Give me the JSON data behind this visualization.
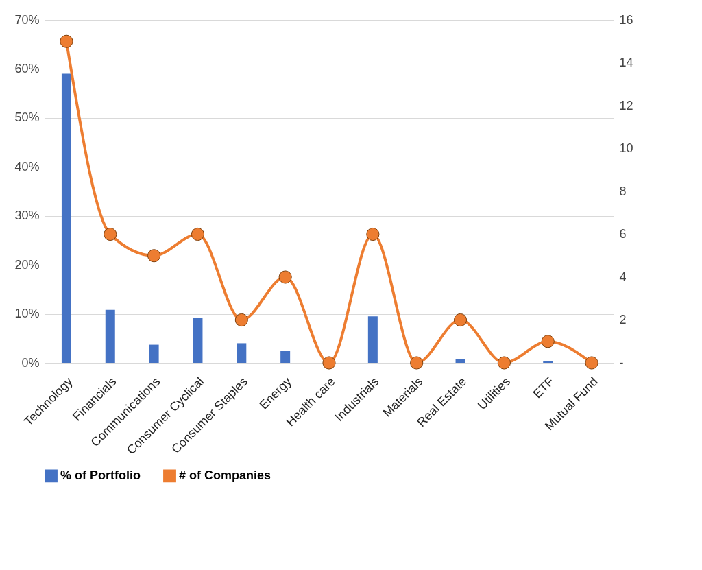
{
  "chart_data": {
    "type": "bar",
    "categories": [
      "Technology",
      "Financials",
      "Communications",
      "Consumer Cyclical",
      "Consumer Staples",
      "Energy",
      "Health care",
      "Industrials",
      "Materials",
      "Real Estate",
      "Utilities",
      "ETF",
      "Mutual Fund"
    ],
    "series": [
      {
        "name": "% of Portfolio",
        "color": "#4472c4",
        "values": [
          59,
          10.8,
          3.7,
          9.2,
          4,
          2.5,
          0,
          9.5,
          0,
          0.8,
          0,
          0.3,
          0
        ]
      },
      {
        "name": "# of Companies",
        "type": "line",
        "axis": "y2",
        "color": "#ed7d31",
        "values": [
          15,
          6,
          5,
          6,
          2,
          4,
          0,
          6,
          0,
          2,
          0,
          1,
          0
        ]
      }
    ],
    "ylim": [
      0,
      70
    ],
    "yticks": [
      {
        "value": 0,
        "label": "0%"
      },
      {
        "value": 10,
        "label": "10%"
      },
      {
        "value": 20,
        "label": "20%"
      },
      {
        "value": 30,
        "label": "30%"
      },
      {
        "value": 40,
        "label": "40%"
      },
      {
        "value": 50,
        "label": "50%"
      },
      {
        "value": 60,
        "label": "60%"
      },
      {
        "value": 70,
        "label": "70%"
      }
    ],
    "y2lim": [
      0,
      16
    ],
    "y2ticks": [
      {
        "value": 0,
        "label": "-"
      },
      2,
      4,
      6,
      8,
      10,
      12,
      14,
      16
    ],
    "grid": "y",
    "legend": "bottom",
    "marker": "circle"
  }
}
